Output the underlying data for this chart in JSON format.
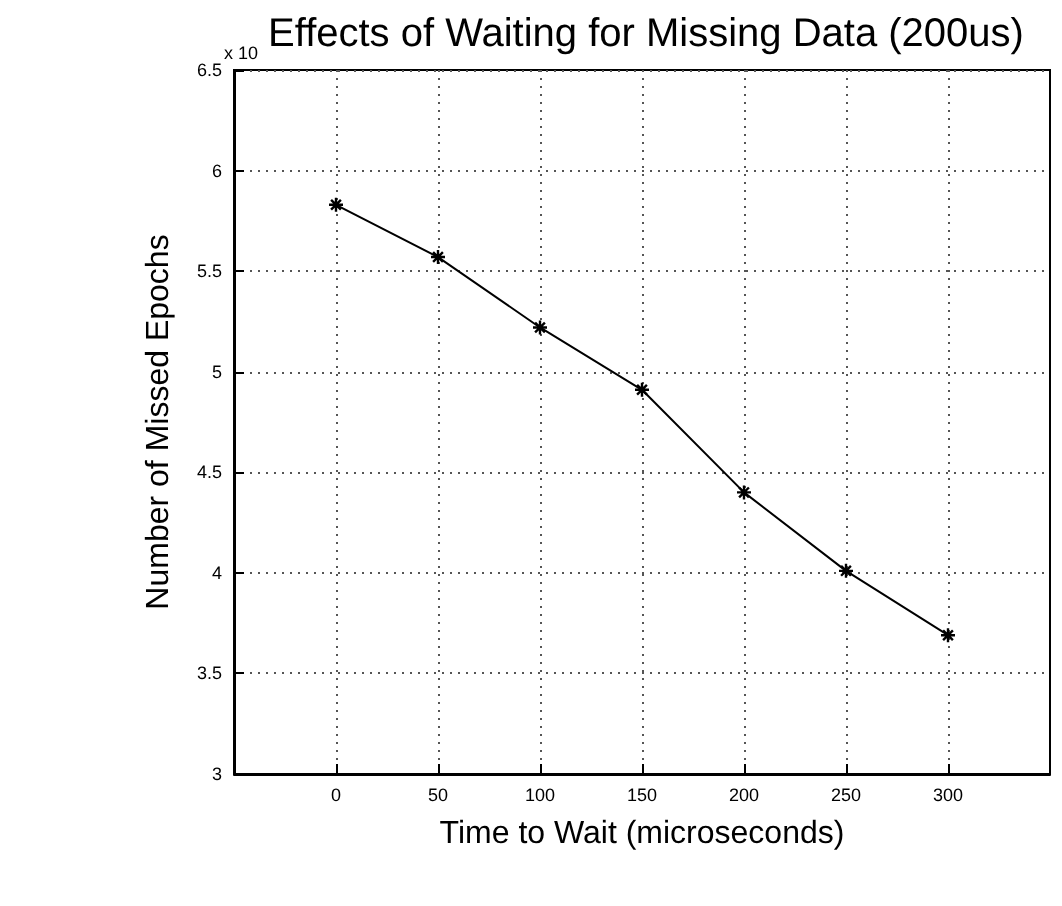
{
  "chart_data": {
    "type": "line",
    "title": "Effects of Waiting for Missing Data (200us)",
    "xlabel": "Time to Wait (microseconds)",
    "ylabel": "Number of Missed Epochs",
    "annotations": [
      "x 10"
    ],
    "x": [
      0,
      50,
      100,
      150,
      200,
      250,
      300
    ],
    "series": [
      {
        "color": "#000000",
        "values": [
          5.83,
          5.57,
          5.22,
          4.91,
          4.4,
          4.01,
          3.69
        ]
      }
    ],
    "xlim": [
      -50,
      350
    ],
    "xticks": [
      0,
      50,
      100,
      150,
      200,
      250,
      300
    ],
    "ylim": [
      3,
      6.5
    ],
    "yticks": [
      3,
      3.5,
      4,
      4.5,
      5,
      5.5,
      6,
      6.5
    ],
    "grid": true,
    "marker": "cross",
    "line_style": "solid"
  }
}
